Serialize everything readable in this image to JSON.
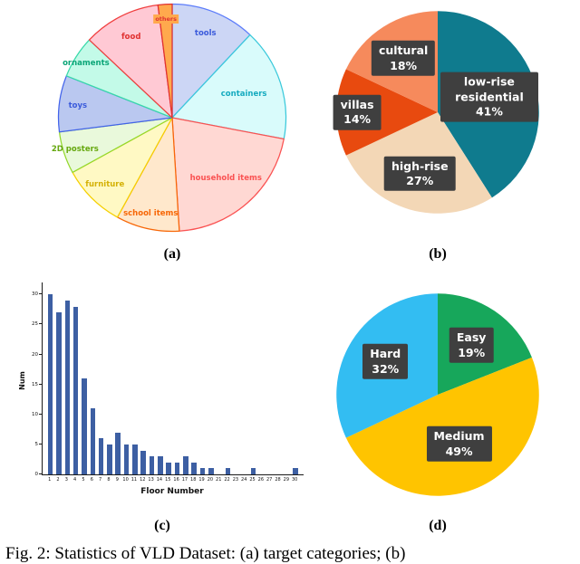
{
  "figure": {
    "caption": "Fig. 2: Statistics of VLD Dataset: (a) target categories; (b)",
    "subfig_labels": [
      "(a)",
      "(b)",
      "(c)",
      "(d)"
    ]
  },
  "label_box_color": "#3f3f3f",
  "chart_data": [
    {
      "id": "a",
      "type": "pie",
      "title": "target categories",
      "start_angle": "top",
      "direction": "clockwise",
      "slices": [
        {
          "label": "tools",
          "value": 12,
          "fill": "#ccd6f5",
          "stroke": "#5c7cfa",
          "text": "#3b5bdb",
          "lr": 0.78
        },
        {
          "label": "containers",
          "value": 16,
          "fill": "#d9fbfb",
          "stroke": "#3bc9db",
          "text": "#15aabf",
          "lr": 0.65
        },
        {
          "label": "household items",
          "value": 21,
          "fill": "#ffd8d3",
          "stroke": "#fa5252",
          "text": "#fa5252",
          "lr": 0.7
        },
        {
          "label": "school items",
          "value": 9,
          "fill": "#ffe8cc",
          "stroke": "#f76707",
          "text": "#f76707",
          "lr": 0.85
        },
        {
          "label": "furniture",
          "value": 9,
          "fill": "#fff9c4",
          "stroke": "#f5d000",
          "text": "#d4b106",
          "lr": 0.82
        },
        {
          "label": "2D posters",
          "value": 6,
          "fill": "#e9f9db",
          "stroke": "#94d82d",
          "text": "#66a80f",
          "lr": 0.88
        },
        {
          "label": "toys",
          "value": 8,
          "fill": "#bac8f0",
          "stroke": "#4263eb",
          "text": "#3b5bdb",
          "lr": 0.82
        },
        {
          "label": "ornaments",
          "value": 6,
          "fill": "#c3fae8",
          "stroke": "#38d9a9",
          "text": "#0ca678",
          "lr": 0.88
        },
        {
          "label": "food",
          "value": 11,
          "fill": "#ffc9d4",
          "stroke": "#f03e3e",
          "text": "#e03131",
          "lr": 0.78
        },
        {
          "label": "others",
          "value": 2,
          "fill": "#ffa94d",
          "stroke": "#e03131",
          "text": "#e03131",
          "label_bg": "#ffa94d",
          "lr": 0.85
        }
      ]
    },
    {
      "id": "b",
      "type": "pie",
      "title": "scene types",
      "start_angle": "top",
      "direction": "clockwise",
      "label_style": "boxed",
      "slices": [
        {
          "label": "low-rise residential",
          "pct_text": "41%",
          "value": 41,
          "fill": "#0f7b8e",
          "lr": 0.52
        },
        {
          "label": "high-rise",
          "pct_text": "27%",
          "value": 27,
          "fill": "#f3d7b6",
          "lr": 0.62
        },
        {
          "label": "villas",
          "pct_text": "14%",
          "value": 14,
          "fill": "#e84a0f",
          "lr": 0.78
        },
        {
          "label": "cultural",
          "pct_text": "18%",
          "value": 18,
          "fill": "#f68a5c",
          "lr": 0.62
        }
      ]
    },
    {
      "id": "c",
      "type": "bar",
      "xlabel": "Floor Number",
      "ylabel": "Num",
      "bar_color": "#3d5fa3",
      "categories": [
        1,
        2,
        3,
        4,
        5,
        6,
        7,
        8,
        9,
        10,
        11,
        12,
        13,
        14,
        15,
        16,
        17,
        18,
        19,
        20,
        21,
        22,
        23,
        24,
        25,
        26,
        27,
        28,
        29,
        30
      ],
      "values": [
        30,
        27,
        29,
        28,
        16,
        11,
        6,
        5,
        7,
        5,
        5,
        4,
        3,
        3,
        2,
        2,
        3,
        2,
        1,
        1,
        0,
        1,
        0,
        0,
        1,
        0,
        0,
        0,
        0,
        1
      ],
      "ylim": [
        0,
        30
      ],
      "yticks": [
        0,
        5,
        10,
        15,
        20,
        25,
        30
      ],
      "grid": false
    },
    {
      "id": "d",
      "type": "pie",
      "title": "difficulty levels",
      "start_angle": "top",
      "direction": "clockwise",
      "label_style": "boxed",
      "slices": [
        {
          "label": "Easy",
          "pct_text": "19%",
          "value": 19,
          "fill": "#17a75b",
          "lr": 0.58
        },
        {
          "label": "Medium",
          "pct_text": "49%",
          "value": 49,
          "fill": "#ffc400",
          "lr": 0.52
        },
        {
          "label": "Hard",
          "pct_text": "32%",
          "value": 32,
          "fill": "#33bdf2",
          "lr": 0.6
        }
      ]
    }
  ]
}
